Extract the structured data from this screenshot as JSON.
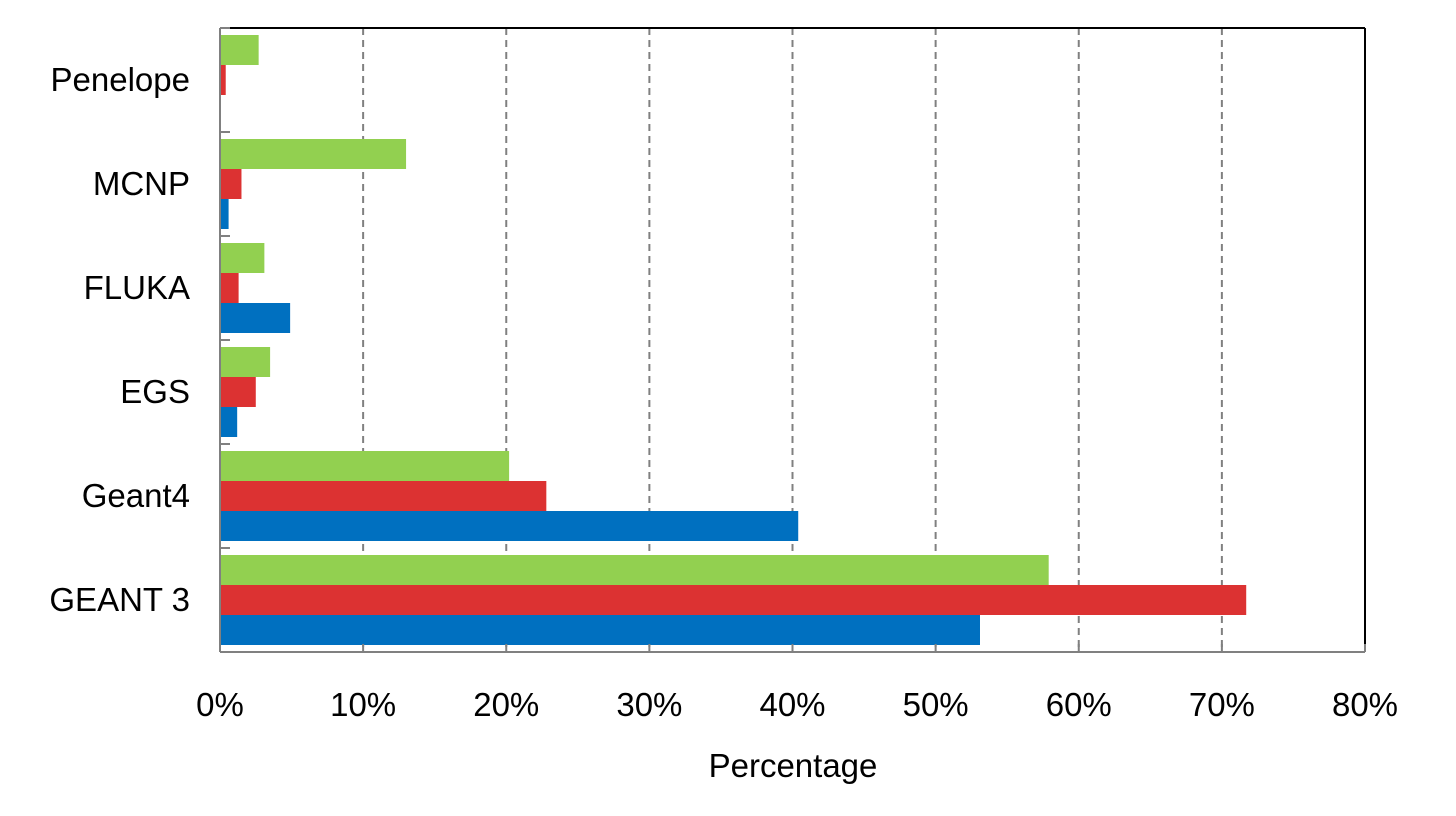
{
  "chart_data": {
    "type": "bar",
    "orientation": "horizontal",
    "title": "",
    "xlabel": "Percentage",
    "ylabel": "",
    "categories": [
      "GEANT 3",
      "Geant4",
      "EGS",
      "FLUKA",
      "MCNP",
      "Penelope"
    ],
    "series": [
      {
        "color": "#92d050",
        "values": [
          57.9,
          20.2,
          3.5,
          3.1,
          13.0,
          2.7
        ]
      },
      {
        "color": "#dc3232",
        "values": [
          71.7,
          22.8,
          2.5,
          1.3,
          1.5,
          0.4
        ]
      },
      {
        "color": "#0070c0",
        "values": [
          53.1,
          40.4,
          1.2,
          4.9,
          0.6,
          0.0
        ]
      }
    ],
    "xlim": [
      0,
      80
    ],
    "xticks": [
      0,
      10,
      20,
      30,
      40,
      50,
      60,
      70,
      80
    ],
    "xtick_labels": [
      "0%",
      "10%",
      "20%",
      "30%",
      "40%",
      "50%",
      "60%",
      "70%",
      "80%"
    ],
    "grid": "vertical dashed",
    "legend": "none"
  }
}
